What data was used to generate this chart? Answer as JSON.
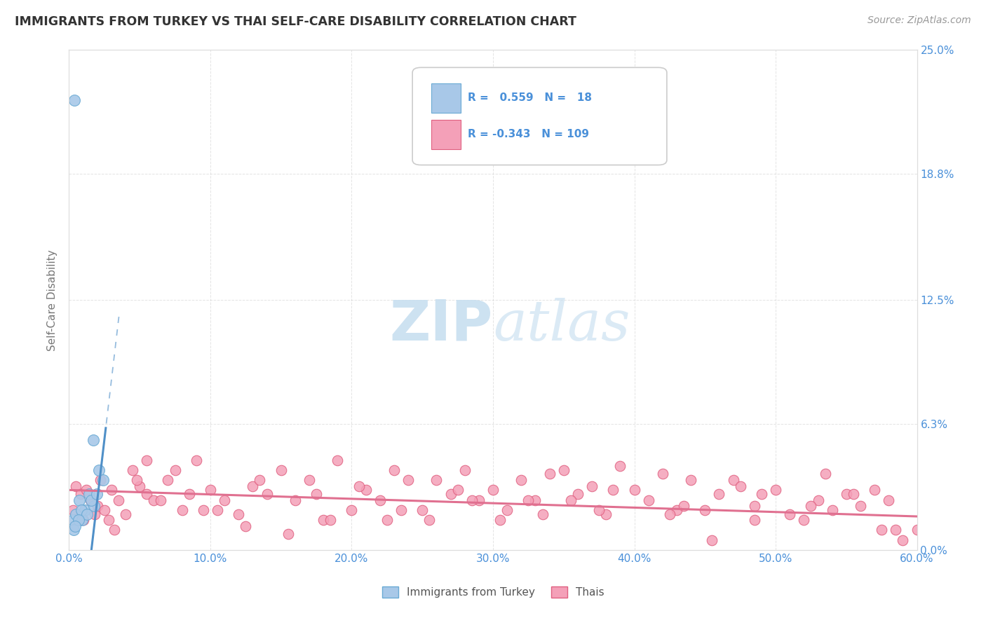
{
  "title": "IMMIGRANTS FROM TURKEY VS THAI SELF-CARE DISABILITY CORRELATION CHART",
  "source": "Source: ZipAtlas.com",
  "ylabel_values": [
    0,
    6.3,
    12.5,
    18.8,
    25.0
  ],
  "ylabel_labels": [
    "0.0%",
    "6.3%",
    "12.5%",
    "18.8%",
    "25.0%"
  ],
  "xtick_vals": [
    0,
    10,
    20,
    30,
    40,
    50,
    60
  ],
  "xtick_labels": [
    "0.0%",
    "10.0%",
    "20.0%",
    "30.0%",
    "40.0%",
    "50.0%",
    "60.0%"
  ],
  "xlim": [
    0,
    60
  ],
  "ylim": [
    0,
    25.0
  ],
  "color_turkey": "#A8C8E8",
  "color_thai": "#F4A0B8",
  "color_turkey_edge": "#6AAAD4",
  "color_thai_edge": "#E06080",
  "color_turkey_line": "#5090C8",
  "color_thai_line": "#E07090",
  "color_text": "#4A90D9",
  "color_grid": "#DDDDDD",
  "color_axis": "#AAAAAA",
  "turkey_x": [
    0.4,
    1.7,
    2.1,
    0.3,
    0.7,
    1.1,
    1.4,
    0.5,
    0.9,
    0.35,
    2.4,
    1.75,
    0.85,
    1.25,
    0.65,
    0.45,
    1.55,
    1.95
  ],
  "turkey_y": [
    22.5,
    5.5,
    4.0,
    1.5,
    2.5,
    2.0,
    2.8,
    1.8,
    1.5,
    1.0,
    3.5,
    2.2,
    2.0,
    1.8,
    1.5,
    1.2,
    2.5,
    2.8
  ],
  "thai_x": [
    0.3,
    0.5,
    0.8,
    1.0,
    1.2,
    1.5,
    1.8,
    2.0,
    2.2,
    2.5,
    2.8,
    3.0,
    3.5,
    4.0,
    4.5,
    5.0,
    5.5,
    6.0,
    7.0,
    8.0,
    9.0,
    10.0,
    11.0,
    12.0,
    13.0,
    14.0,
    15.0,
    16.0,
    17.0,
    18.0,
    19.0,
    20.0,
    21.0,
    22.0,
    23.0,
    24.0,
    25.0,
    26.0,
    27.0,
    28.0,
    29.0,
    30.0,
    31.0,
    32.0,
    33.0,
    35.0,
    36.0,
    37.0,
    38.0,
    40.0,
    41.0,
    42.0,
    43.0,
    44.0,
    45.0,
    46.0,
    47.0,
    48.5,
    49.0,
    50.0,
    52.0,
    53.0,
    55.0,
    57.0,
    58.0,
    59.0,
    34.0,
    39.0,
    51.0,
    54.0,
    56.0,
    60.0,
    20.5,
    30.5,
    10.5,
    6.5,
    3.2,
    4.8,
    7.5,
    12.5,
    17.5,
    22.5,
    27.5,
    32.5,
    37.5,
    42.5,
    47.5,
    52.5,
    57.5,
    8.5,
    13.5,
    18.5,
    23.5,
    28.5,
    33.5,
    38.5,
    43.5,
    48.5,
    53.5,
    58.5,
    5.5,
    9.5,
    15.5,
    25.5,
    35.5,
    45.5,
    55.5
  ],
  "thai_y": [
    2.0,
    3.2,
    2.8,
    1.5,
    3.0,
    2.5,
    1.8,
    2.2,
    3.5,
    2.0,
    1.5,
    3.0,
    2.5,
    1.8,
    4.0,
    3.2,
    2.8,
    2.5,
    3.5,
    2.0,
    4.5,
    3.0,
    2.5,
    1.8,
    3.2,
    2.8,
    4.0,
    2.5,
    3.5,
    1.5,
    4.5,
    2.0,
    3.0,
    2.5,
    4.0,
    3.5,
    2.0,
    3.5,
    2.8,
    4.0,
    2.5,
    3.0,
    2.0,
    3.5,
    2.5,
    4.0,
    2.8,
    3.2,
    1.8,
    3.0,
    2.5,
    3.8,
    2.0,
    3.5,
    2.0,
    2.8,
    3.5,
    2.2,
    2.8,
    3.0,
    1.5,
    2.5,
    2.8,
    3.0,
    2.5,
    0.5,
    3.8,
    4.2,
    1.8,
    2.0,
    2.2,
    1.0,
    3.2,
    1.5,
    2.0,
    2.5,
    1.0,
    3.5,
    4.0,
    1.2,
    2.8,
    1.5,
    3.0,
    2.5,
    2.0,
    1.8,
    3.2,
    2.2,
    1.0,
    2.8,
    3.5,
    1.5,
    2.0,
    2.5,
    1.8,
    3.0,
    2.2,
    1.5,
    3.8,
    1.0,
    4.5,
    2.0,
    0.8,
    1.5,
    2.5,
    0.5,
    2.8
  ],
  "turkey_slope": 6.0,
  "turkey_intercept": -9.5,
  "thai_slope": -0.022,
  "thai_intercept": 3.0,
  "background_color": "#FFFFFF"
}
